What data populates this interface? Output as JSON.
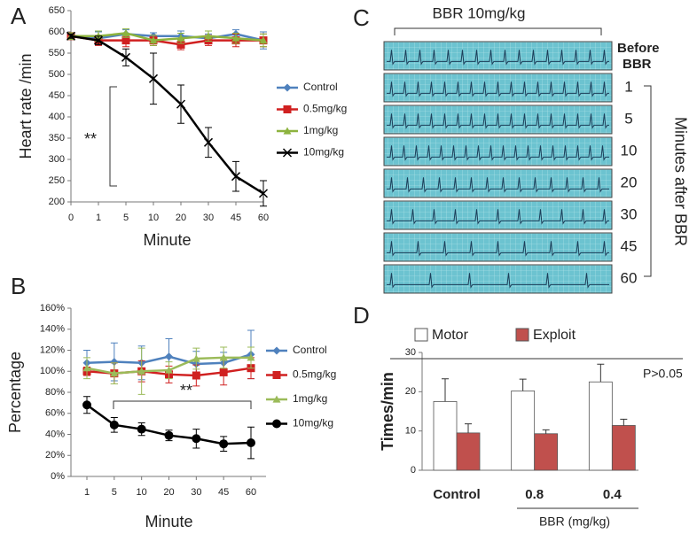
{
  "chart_data": [
    {
      "type": "line",
      "label": "A",
      "ylabel": "Heart rate /min",
      "xlabel": "Minute",
      "categories": [
        "0",
        "1",
        "5",
        "10",
        "20",
        "30",
        "45",
        "60"
      ],
      "ylim": [
        200,
        650
      ],
      "yticks": [
        200,
        250,
        300,
        350,
        400,
        450,
        500,
        550,
        600,
        650
      ],
      "annotation": "**",
      "series": [
        {
          "name": "Control",
          "color": "#4f81bd",
          "marker": "diamond",
          "values": [
            590,
            585,
            595,
            590,
            590,
            585,
            595,
            580
          ],
          "errors": [
            8,
            15,
            10,
            8,
            12,
            10,
            10,
            20
          ]
        },
        {
          "name": "0.5mg/kg",
          "color": "#d02020",
          "marker": "square",
          "values": [
            590,
            580,
            580,
            580,
            570,
            580,
            580,
            580
          ],
          "errors": [
            8,
            12,
            15,
            12,
            12,
            12,
            15,
            15
          ]
        },
        {
          "name": "1mg/kg",
          "color": "#8db33f",
          "marker": "triangle",
          "values": [
            590,
            590,
            597,
            580,
            585,
            590,
            585,
            580
          ],
          "errors": [
            8,
            12,
            10,
            12,
            12,
            12,
            12,
            15
          ]
        },
        {
          "name": "10mg/kg",
          "color": "#000000",
          "marker": "cross",
          "values": [
            590,
            580,
            540,
            490,
            430,
            340,
            260,
            220
          ],
          "errors": [
            5,
            10,
            20,
            60,
            45,
            35,
            35,
            30
          ]
        }
      ]
    },
    {
      "type": "line",
      "label": "B",
      "ylabel": "Percentage",
      "xlabel": "Minute",
      "categories": [
        "1",
        "5",
        "10",
        "20",
        "30",
        "45",
        "60"
      ],
      "ylim": [
        0,
        160
      ],
      "yticks": [
        {
          "value": 0,
          "label": "0%"
        },
        {
          "value": 20,
          "label": "20%"
        },
        {
          "value": 40,
          "label": "40%"
        },
        {
          "value": 60,
          "label": "60%"
        },
        {
          "value": 80,
          "label": "80%"
        },
        {
          "value": 100,
          "label": "100%"
        },
        {
          "value": 120,
          "label": "120%"
        },
        {
          "value": 140,
          "label": "140%"
        },
        {
          "value": 160,
          "label": "160%"
        }
      ],
      "annotation": "**",
      "series": [
        {
          "name": "Control",
          "color": "#4f81bd",
          "marker": "diamond",
          "values": [
            108,
            109,
            108,
            114,
            107,
            108,
            116
          ],
          "errors": [
            12,
            18,
            16,
            17,
            12,
            10,
            23
          ]
        },
        {
          "name": "0.5mg/kg",
          "color": "#d02020",
          "marker": "square",
          "values": [
            100,
            98,
            100,
            97,
            96,
            99,
            103
          ],
          "errors": [
            4,
            10,
            10,
            8,
            10,
            12,
            10
          ]
        },
        {
          "name": "1mg/kg",
          "color": "#9bbb59",
          "marker": "triangle",
          "values": [
            103,
            98,
            100,
            101,
            112,
            113,
            113
          ],
          "errors": [
            10,
            10,
            22,
            8,
            10,
            10,
            10
          ]
        },
        {
          "name": "10mg/kg",
          "color": "#000000",
          "marker": "circle",
          "values": [
            68,
            49,
            45,
            39,
            36,
            31,
            32
          ],
          "errors": [
            8,
            7,
            6,
            5,
            9,
            7,
            15
          ]
        }
      ]
    },
    {
      "type": "bar",
      "label": "D",
      "ylabel": "Times/min",
      "group_label": "BBR (mg/kg)",
      "categories": [
        "Control",
        "0.8",
        "0.4"
      ],
      "ylim": [
        0,
        30
      ],
      "yticks": [
        0,
        10,
        20,
        30
      ],
      "annotation": "P>0.05",
      "series": [
        {
          "name": "Motor",
          "color": "#ffffff",
          "values": [
            17.5,
            20.2,
            22.5
          ],
          "errors": [
            5.8,
            3,
            4.5
          ]
        },
        {
          "name": "Exploit",
          "color": "#c0504d",
          "values": [
            9.5,
            9.3,
            11.4
          ],
          "errors": [
            2.3,
            1,
            1.6
          ]
        }
      ]
    }
  ],
  "panel_c": {
    "label": "C",
    "title": "BBR 10mg/kg",
    "before_label": [
      "Before",
      "BBR"
    ],
    "minutes": [
      "1",
      "5",
      "10",
      "20",
      "30",
      "45",
      "60"
    ],
    "side_label": "Minutes after BBR"
  }
}
